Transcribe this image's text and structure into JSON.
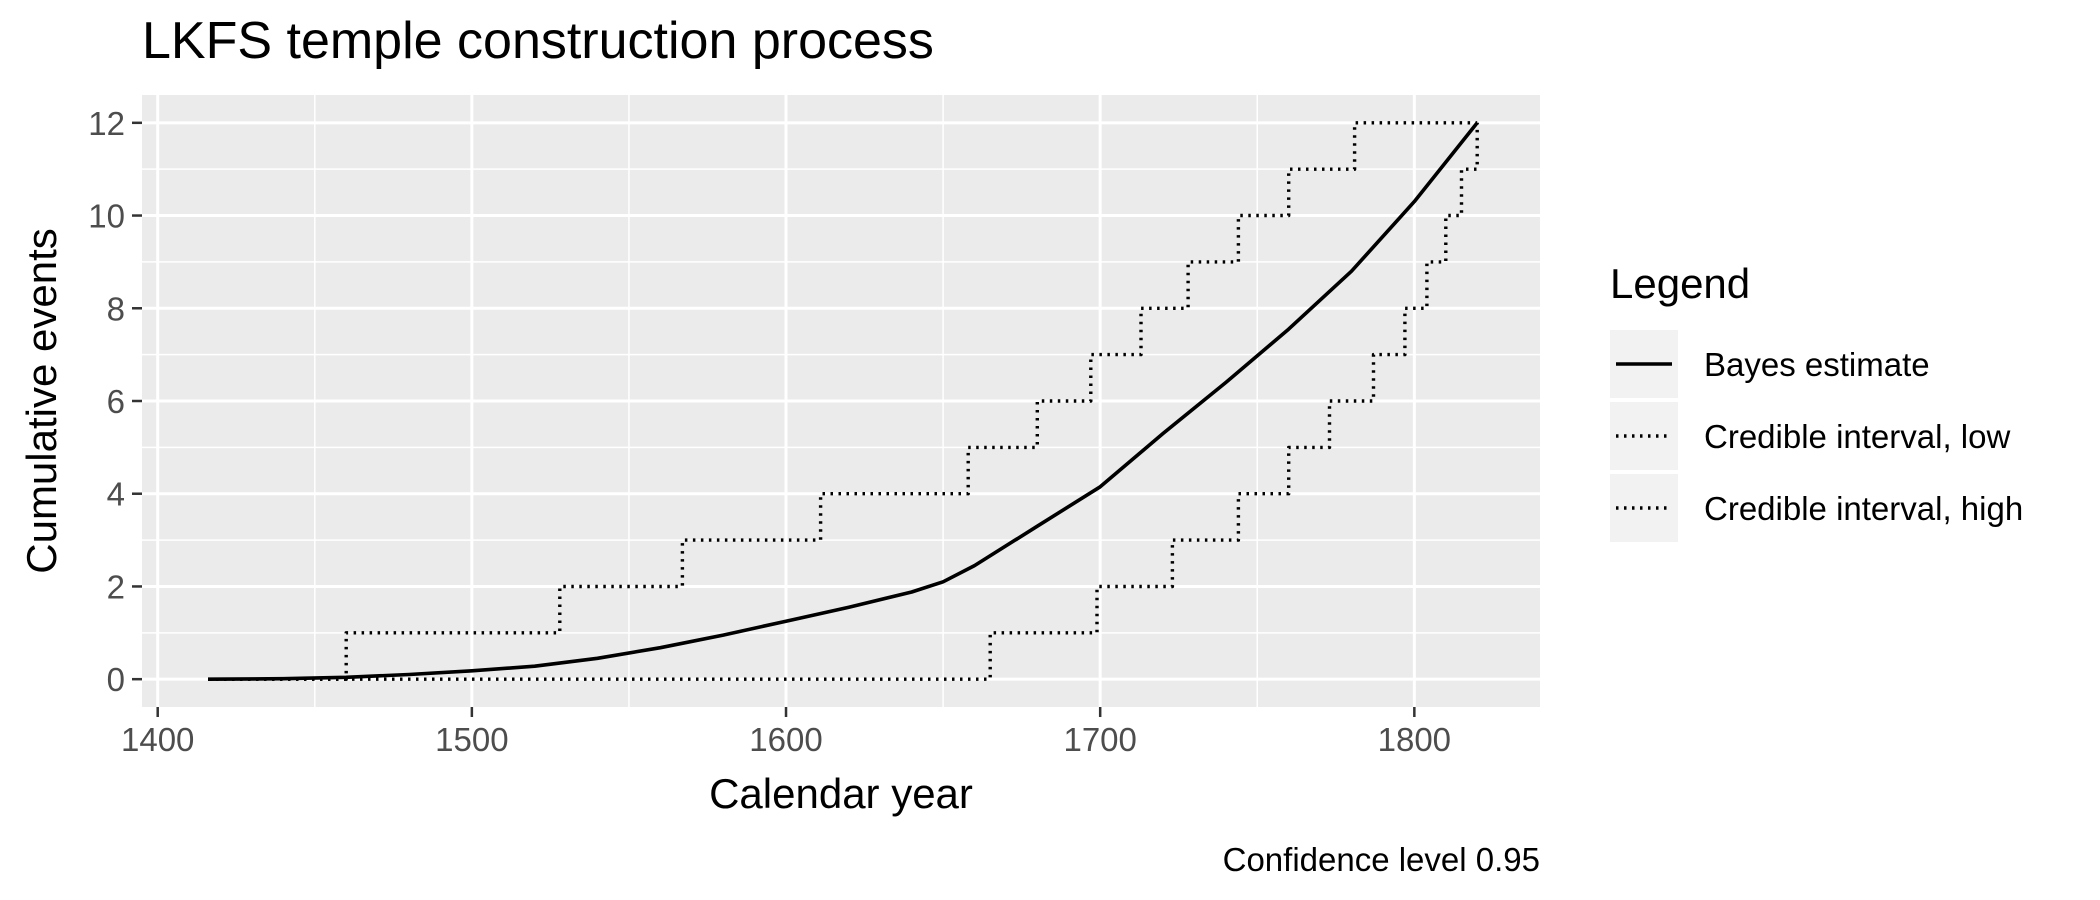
{
  "chart_data": {
    "type": "line",
    "title": "LKFS temple construction process",
    "xlabel": "Calendar year",
    "ylabel": "Cumulative events",
    "caption": "Confidence level 0.95",
    "xlim": [
      1395,
      1840
    ],
    "ylim": [
      -0.6,
      12.6
    ],
    "x_ticks": [
      1400,
      1500,
      1600,
      1700,
      1800
    ],
    "y_ticks": [
      0,
      2,
      4,
      6,
      8,
      10,
      12
    ],
    "grid": true,
    "legend": {
      "title": "Legend",
      "placement": "right",
      "entries": [
        "Bayes estimate",
        "Credible interval, low",
        "Credible interval, high"
      ]
    },
    "series": [
      {
        "name": "Bayes estimate",
        "style": "solid",
        "points": [
          [
            1416,
            0
          ],
          [
            1440,
            0.01
          ],
          [
            1460,
            0.04
          ],
          [
            1480,
            0.1
          ],
          [
            1500,
            0.18
          ],
          [
            1520,
            0.28
          ],
          [
            1540,
            0.45
          ],
          [
            1560,
            0.68
          ],
          [
            1580,
            0.95
          ],
          [
            1600,
            1.25
          ],
          [
            1620,
            1.55
          ],
          [
            1640,
            1.88
          ],
          [
            1650,
            2.1
          ],
          [
            1660,
            2.45
          ],
          [
            1680,
            3.3
          ],
          [
            1700,
            4.15
          ],
          [
            1720,
            5.3
          ],
          [
            1740,
            6.4
          ],
          [
            1760,
            7.55
          ],
          [
            1780,
            8.8
          ],
          [
            1800,
            10.3
          ],
          [
            1820,
            12
          ]
        ]
      },
      {
        "name": "Credible interval, low",
        "style": "dotted",
        "steps": [
          [
            1416,
            0
          ],
          [
            1665,
            1
          ],
          [
            1699,
            2
          ],
          [
            1723,
            3
          ],
          [
            1744,
            4
          ],
          [
            1760,
            5
          ],
          [
            1773,
            6
          ],
          [
            1787,
            7
          ],
          [
            1797,
            8
          ],
          [
            1804,
            9
          ],
          [
            1810,
            10
          ],
          [
            1815,
            11
          ],
          [
            1820,
            12
          ]
        ]
      },
      {
        "name": "Credible interval, high",
        "style": "dotted",
        "steps": [
          [
            1416,
            0
          ],
          [
            1460,
            1
          ],
          [
            1528,
            2
          ],
          [
            1567,
            3
          ],
          [
            1611,
            4
          ],
          [
            1658,
            5
          ],
          [
            1680,
            6
          ],
          [
            1697,
            7
          ],
          [
            1713,
            8
          ],
          [
            1728,
            9
          ],
          [
            1744,
            10
          ],
          [
            1760,
            11
          ],
          [
            1781,
            12
          ],
          [
            1820,
            12
          ]
        ]
      }
    ],
    "colors": {
      "panel_background": "#ebebeb",
      "grid_line": "#ffffff",
      "line": "#000000",
      "tick_text": "#4d4d4d"
    }
  }
}
